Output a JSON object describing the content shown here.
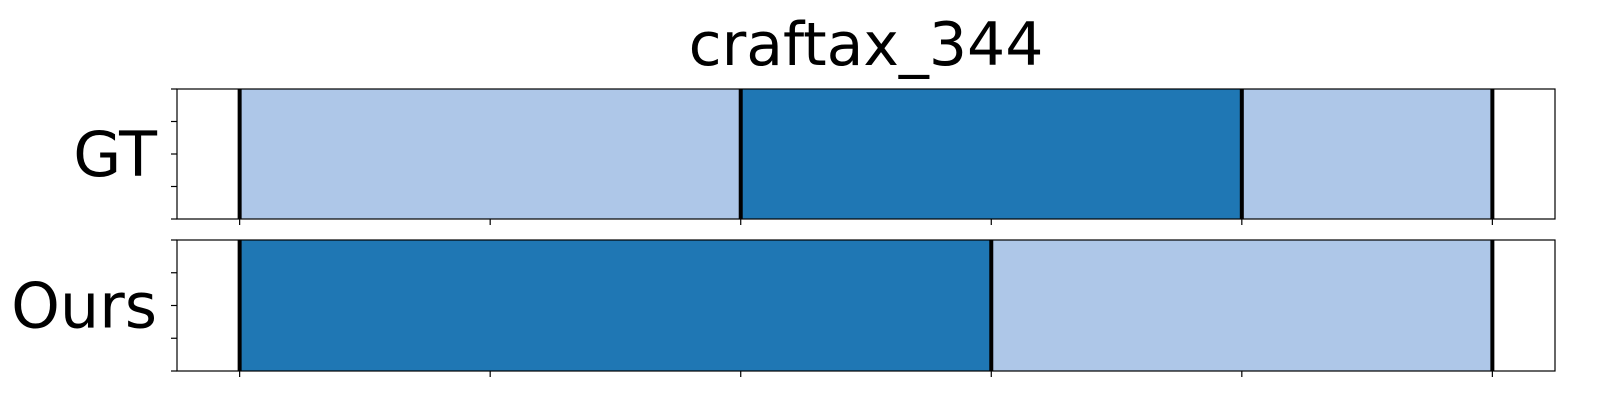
{
  "chart_data": {
    "type": "segmentation-timeline",
    "title": "craftax_344",
    "xlim": [
      0,
      11
    ],
    "x_ticks": [
      0.5,
      2.5,
      4.5,
      6.5,
      8.5,
      10.5
    ],
    "y_ticks_per_row": 5,
    "colors": {
      "light": "#aec7e8",
      "dark": "#1f77b4"
    },
    "rows": [
      {
        "label": "GT",
        "segments": [
          {
            "start": 0.5,
            "end": 4.5,
            "color": "light"
          },
          {
            "start": 4.5,
            "end": 8.5,
            "color": "dark"
          },
          {
            "start": 8.5,
            "end": 10.5,
            "color": "light"
          }
        ],
        "boundaries": [
          0.5,
          4.5,
          8.5,
          10.5
        ]
      },
      {
        "label": "Ours",
        "segments": [
          {
            "start": 0.5,
            "end": 6.5,
            "color": "dark"
          },
          {
            "start": 6.5,
            "end": 10.5,
            "color": "light"
          }
        ],
        "boundaries": [
          0.5,
          6.5,
          10.5
        ]
      }
    ]
  }
}
